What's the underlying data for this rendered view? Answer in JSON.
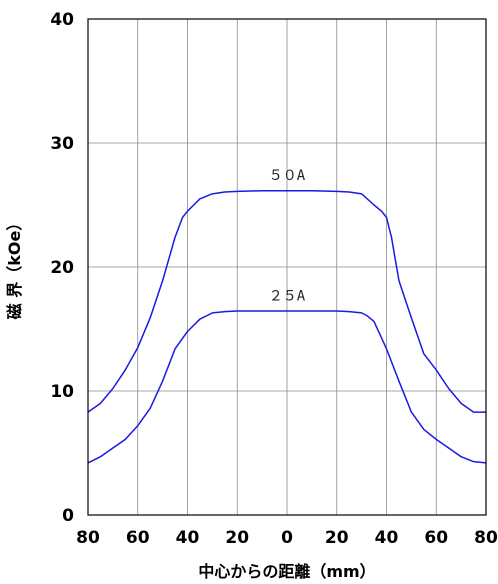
{
  "chart_data": {
    "type": "line",
    "title": "",
    "xlabel": "中心からの距離（mm）",
    "ylabel": "磁 界（kOe）",
    "xlim": [
      -80,
      80
    ],
    "ylim": [
      0,
      40
    ],
    "x_ticks": [
      -80,
      -60,
      -40,
      -20,
      0,
      20,
      40,
      60,
      80
    ],
    "x_tick_labels": [
      "80",
      "60",
      "40",
      "20",
      "0",
      "20",
      "40",
      "60",
      "80"
    ],
    "y_ticks": [
      0,
      10,
      20,
      30,
      40
    ],
    "y_tick_labels": [
      "0",
      "10",
      "20",
      "30",
      "40"
    ],
    "grid": true,
    "line_color": "#1a1ae6",
    "series": [
      {
        "name": "５０A",
        "x": [
          -80,
          -75,
          -70,
          -65,
          -60,
          -55,
          -50,
          -45,
          -42,
          -40,
          -38,
          -35,
          -30,
          -25,
          -20,
          -10,
          0,
          10,
          20,
          25,
          30,
          35,
          38,
          40,
          42,
          45,
          50,
          55,
          60,
          65,
          70,
          75,
          80
        ],
        "y": [
          8.3,
          9.0,
          10.2,
          11.7,
          13.5,
          15.9,
          18.9,
          22.4,
          24.0,
          24.5,
          24.9,
          25.5,
          25.9,
          26.05,
          26.1,
          26.15,
          26.15,
          26.15,
          26.1,
          26.05,
          25.9,
          25.0,
          24.5,
          24.0,
          22.4,
          18.9,
          15.9,
          13.0,
          11.7,
          10.2,
          9.0,
          8.3,
          8.3
        ],
        "label_pos": [
          0,
          27.0
        ]
      },
      {
        "name": "２５A",
        "x": [
          -80,
          -75,
          -70,
          -65,
          -60,
          -55,
          -50,
          -45,
          -40,
          -35,
          -32,
          -30,
          -25,
          -20,
          -10,
          0,
          10,
          20,
          25,
          30,
          32,
          35,
          40,
          45,
          50,
          55,
          60,
          65,
          70,
          75,
          80
        ],
        "y": [
          4.2,
          4.7,
          5.4,
          6.1,
          7.2,
          8.6,
          10.8,
          13.4,
          14.8,
          15.8,
          16.1,
          16.3,
          16.4,
          16.45,
          16.45,
          16.45,
          16.45,
          16.45,
          16.4,
          16.3,
          16.1,
          15.6,
          13.4,
          10.8,
          8.3,
          6.9,
          6.1,
          5.4,
          4.7,
          4.3,
          4.2
        ],
        "label_pos": [
          0,
          17.3
        ]
      }
    ]
  }
}
